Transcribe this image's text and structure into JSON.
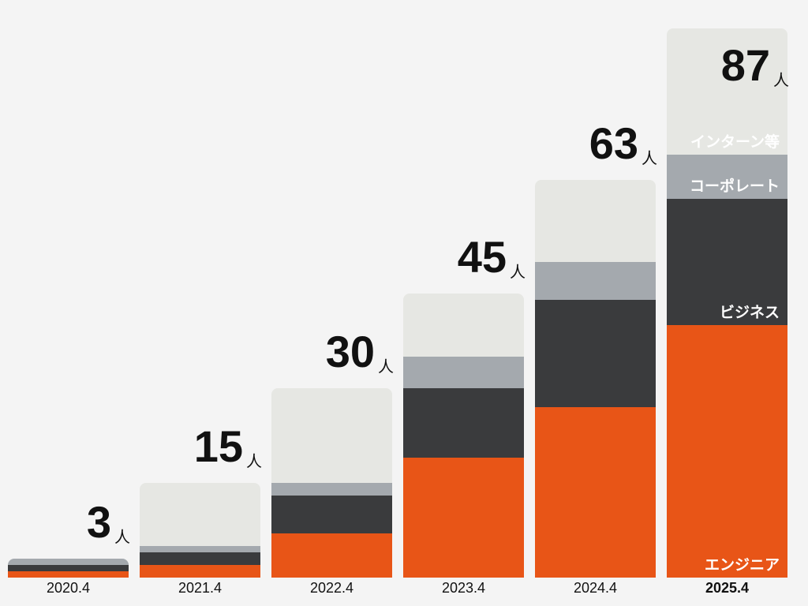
{
  "chart_data": {
    "type": "stacked-bar",
    "categories": [
      "2020.4",
      "2021.4",
      "2022.4",
      "2023.4",
      "2024.4",
      "2025.4"
    ],
    "series": [
      {
        "name": "エンジニア",
        "color": "#e85517",
        "values": [
          1,
          2,
          7,
          19,
          27,
          40
        ]
      },
      {
        "name": "ビジネス",
        "color": "#3a3b3d",
        "values": [
          1,
          2,
          6,
          11,
          17,
          20
        ]
      },
      {
        "name": "コーポレート",
        "color": "#a4a9ae",
        "values": [
          1,
          1,
          2,
          5,
          6,
          7
        ]
      },
      {
        "name": "インターン等",
        "color": "#e6e7e3",
        "values": [
          0,
          10,
          15,
          10,
          13,
          20
        ]
      }
    ],
    "totals": [
      3,
      15,
      30,
      45,
      63,
      87
    ],
    "unit": "人",
    "ylim": [
      0,
      87
    ]
  }
}
